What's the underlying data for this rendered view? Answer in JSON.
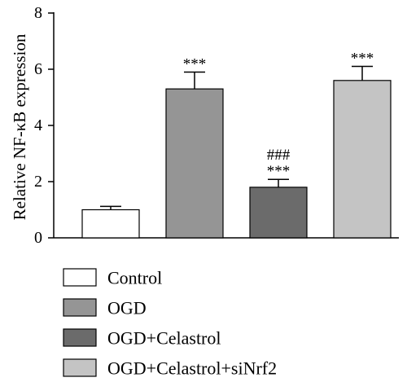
{
  "chart_data": {
    "type": "bar",
    "title": "",
    "xlabel": "",
    "ylabel": "Relative NF-κB expression",
    "ylim": [
      0,
      8
    ],
    "yticks": [
      "0",
      "2",
      "4",
      "6",
      "8"
    ],
    "grid": false,
    "legend_position": "bottom",
    "categories": [
      "Control",
      "OGD",
      "OGD+Celastrol",
      "OGD+Celastrol+siNrf2"
    ],
    "values": [
      1.0,
      5.3,
      1.8,
      5.6
    ],
    "errors": [
      0.12,
      0.6,
      0.28,
      0.5
    ],
    "colors": [
      "#ffffff",
      "#959595",
      "#6b6b6b",
      "#c4c4c4"
    ],
    "annotations": [
      [],
      [
        "***"
      ],
      [
        "###",
        "***"
      ],
      [
        "***"
      ]
    ]
  }
}
